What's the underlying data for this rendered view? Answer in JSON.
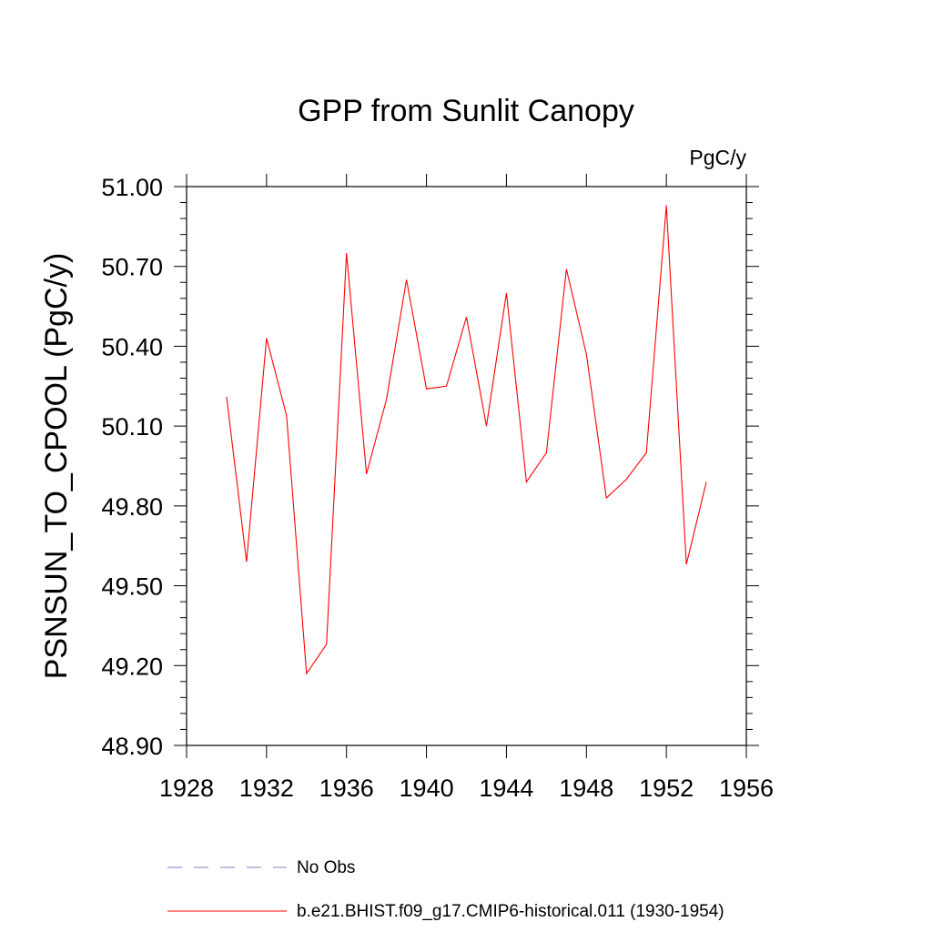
{
  "chart_data": {
    "type": "line",
    "title": "GPP from Sunlit Canopy",
    "units_label": "PgC/y",
    "ylabel": "PSNSUN_TO_CPOOL  (PgC/y)",
    "xlabel": "",
    "xlim": [
      1928,
      1956
    ],
    "ylim": [
      48.9,
      51.0
    ],
    "x_ticks": [
      "1928",
      "1932",
      "1936",
      "1940",
      "1944",
      "1948",
      "1952",
      "1956"
    ],
    "y_ticks": [
      "48.90",
      "49.20",
      "49.50",
      "49.80",
      "50.10",
      "50.40",
      "50.70",
      "51.00"
    ],
    "grid": false,
    "legend_position": "bottom",
    "series": [
      {
        "name": "No Obs",
        "color": "#7f7fbf",
        "dashed": true,
        "x": [],
        "values": []
      },
      {
        "name": "b.e21.BHIST.f09_g17.CMIP6-historical.011 (1930-1954)",
        "color": "#ff0000",
        "dashed": false,
        "x": [
          1930,
          1931,
          1932,
          1933,
          1934,
          1935,
          1936,
          1937,
          1938,
          1939,
          1940,
          1941,
          1942,
          1943,
          1944,
          1945,
          1946,
          1947,
          1948,
          1949,
          1950,
          1951,
          1952,
          1953,
          1954
        ],
        "values": [
          50.21,
          49.59,
          50.43,
          50.14,
          49.17,
          49.28,
          50.75,
          49.92,
          50.2,
          50.65,
          50.24,
          50.25,
          50.51,
          50.1,
          50.6,
          49.89,
          50.0,
          50.69,
          50.37,
          49.83,
          49.9,
          50.0,
          50.93,
          49.58,
          49.89
        ]
      }
    ]
  }
}
